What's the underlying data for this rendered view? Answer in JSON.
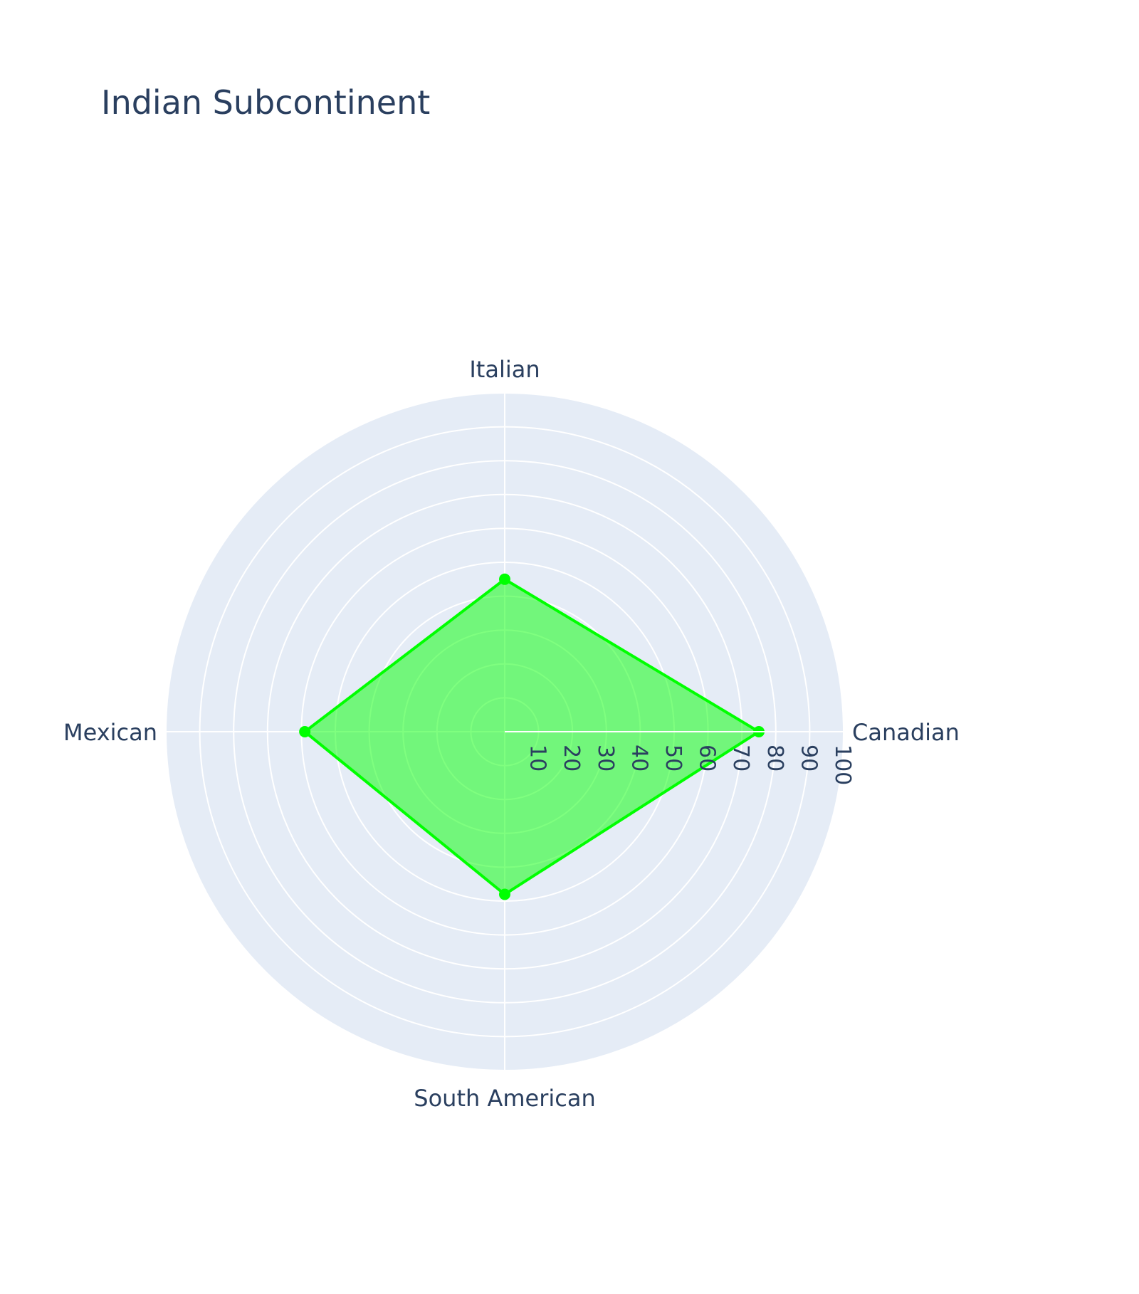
{
  "chart_data": {
    "type": "radar",
    "title": "Indian Subcontinent",
    "categories": [
      "Italian",
      "Canadian",
      "South American",
      "Mexican"
    ],
    "series": [
      {
        "values": [
          45,
          75,
          48,
          59
        ]
      }
    ],
    "radial_axis": {
      "range": [
        0,
        100
      ],
      "tick_labels": [
        "10",
        "20",
        "30",
        "40",
        "50",
        "60",
        "70",
        "80",
        "90",
        "100"
      ]
    },
    "colors": {
      "line": "#00ff00",
      "fill": "#00ff0080",
      "polar_bg": "#e5ecf6",
      "grid": "#ffffff",
      "text": "#2a3f5f"
    },
    "grid": true,
    "legend": false
  }
}
